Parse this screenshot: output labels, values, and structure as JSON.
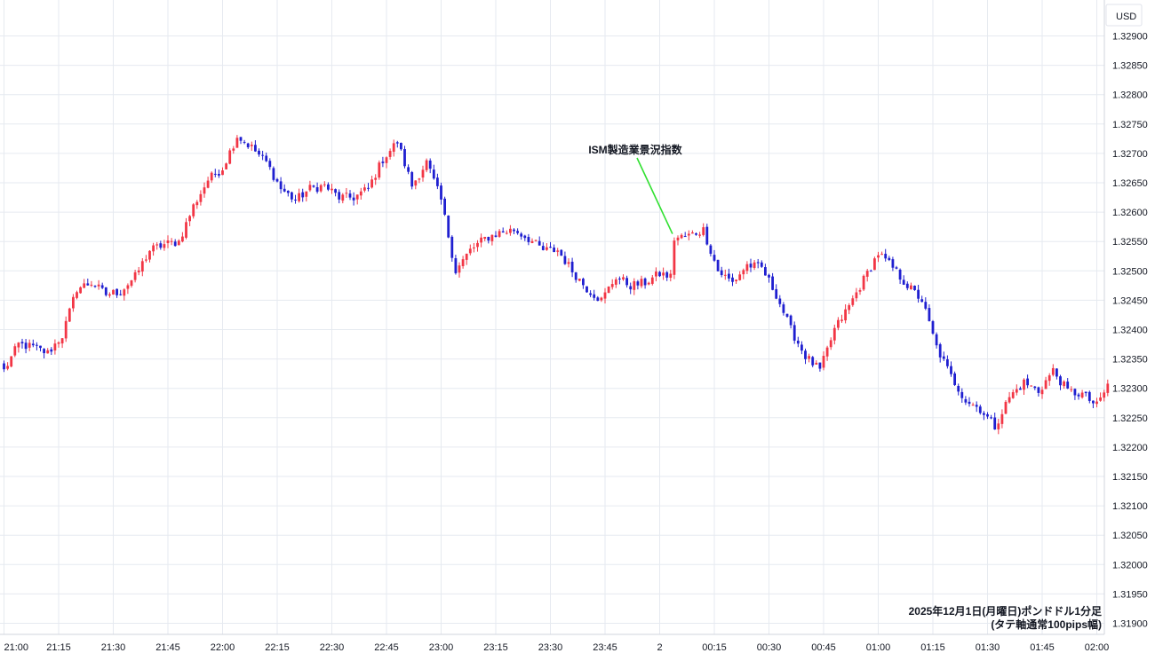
{
  "chart_data": {
    "type": "candlestick",
    "currency_label": "USD",
    "caption_line1": "2025年12月1日(月曜日)ポンドドル1分足",
    "caption_line2": "(タテ軸通常100pips幅)",
    "annotation": {
      "text": "ISM製造業景況指数",
      "time_index": 184,
      "price": 1.3256
    },
    "ylim": [
      1.31885,
      1.3294
    ],
    "y_ticks": [
      "1.32900",
      "1.32850",
      "1.32800",
      "1.32750",
      "1.32700",
      "1.32650",
      "1.32600",
      "1.32550",
      "1.32500",
      "1.32450",
      "1.32400",
      "1.32350",
      "1.32300",
      "1.32250",
      "1.32200",
      "1.32150",
      "1.32100",
      "1.32050",
      "1.32000",
      "1.31950",
      "1.31900"
    ],
    "x_ticks": [
      {
        "label": "21:00",
        "index": 0
      },
      {
        "label": "21:15",
        "index": 15
      },
      {
        "label": "21:30",
        "index": 30
      },
      {
        "label": "21:45",
        "index": 45
      },
      {
        "label": "22:00",
        "index": 60
      },
      {
        "label": "22:15",
        "index": 75
      },
      {
        "label": "22:30",
        "index": 90
      },
      {
        "label": "22:45",
        "index": 105
      },
      {
        "label": "23:00",
        "index": 120
      },
      {
        "label": "23:15",
        "index": 135
      },
      {
        "label": "23:30",
        "index": 150
      },
      {
        "label": "23:45",
        "index": 165
      },
      {
        "label": "2",
        "index": 180
      },
      {
        "label": "00:15",
        "index": 195
      },
      {
        "label": "00:30",
        "index": 210
      },
      {
        "label": "00:45",
        "index": 225
      },
      {
        "label": "01:00",
        "index": 240
      },
      {
        "label": "01:15",
        "index": 255
      },
      {
        "label": "01:30",
        "index": 270
      },
      {
        "label": "01:45",
        "index": 285
      },
      {
        "label": "02:00",
        "index": 300
      }
    ],
    "close_path": [
      [
        0,
        1.3233
      ],
      [
        4,
        1.32375
      ],
      [
        8,
        1.3237
      ],
      [
        12,
        1.3236
      ],
      [
        16,
        1.3239
      ],
      [
        20,
        1.3247
      ],
      [
        24,
        1.3248
      ],
      [
        28,
        1.3246
      ],
      [
        32,
        1.32465
      ],
      [
        36,
        1.3249
      ],
      [
        40,
        1.32535
      ],
      [
        44,
        1.32545
      ],
      [
        48,
        1.3255
      ],
      [
        52,
        1.3261
      ],
      [
        56,
        1.32655
      ],
      [
        60,
        1.32675
      ],
      [
        64,
        1.3273
      ],
      [
        68,
        1.3271
      ],
      [
        72,
        1.32685
      ],
      [
        76,
        1.3264
      ],
      [
        80,
        1.3262
      ],
      [
        84,
        1.3264
      ],
      [
        88,
        1.32645
      ],
      [
        92,
        1.32625
      ],
      [
        96,
        1.32625
      ],
      [
        100,
        1.3264
      ],
      [
        104,
        1.3269
      ],
      [
        108,
        1.3272
      ],
      [
        112,
        1.32645
      ],
      [
        116,
        1.32685
      ],
      [
        120,
        1.3262
      ],
      [
        124,
        1.325
      ],
      [
        128,
        1.32535
      ],
      [
        132,
        1.32555
      ],
      [
        136,
        1.32565
      ],
      [
        140,
        1.3257
      ],
      [
        144,
        1.32555
      ],
      [
        148,
        1.32535
      ],
      [
        152,
        1.32535
      ],
      [
        156,
        1.325
      ],
      [
        160,
        1.3247
      ],
      [
        164,
        1.3245
      ],
      [
        168,
        1.3249
      ],
      [
        172,
        1.32475
      ],
      [
        176,
        1.3248
      ],
      [
        180,
        1.32495
      ],
      [
        183,
        1.3249
      ],
      [
        184,
        1.32555
      ],
      [
        188,
        1.3256
      ],
      [
        192,
        1.3257
      ],
      [
        196,
        1.325
      ],
      [
        200,
        1.3248
      ],
      [
        204,
        1.3251
      ],
      [
        208,
        1.32505
      ],
      [
        212,
        1.3246
      ],
      [
        216,
        1.324
      ],
      [
        220,
        1.32355
      ],
      [
        224,
        1.3233
      ],
      [
        228,
        1.324
      ],
      [
        232,
        1.3244
      ],
      [
        236,
        1.32485
      ],
      [
        240,
        1.3253
      ],
      [
        244,
        1.32505
      ],
      [
        248,
        1.32475
      ],
      [
        252,
        1.3245
      ],
      [
        256,
        1.3237
      ],
      [
        260,
        1.3232
      ],
      [
        264,
        1.3228
      ],
      [
        268,
        1.32265
      ],
      [
        272,
        1.32235
      ],
      [
        276,
        1.32285
      ],
      [
        280,
        1.3231
      ],
      [
        284,
        1.32295
      ],
      [
        288,
        1.3233
      ],
      [
        292,
        1.32295
      ],
      [
        296,
        1.3229
      ],
      [
        300,
        1.3227
      ],
      [
        303,
        1.32305
      ]
    ],
    "up_color": "#f23645",
    "down_color": "#1f1fd0",
    "annotation_line_color": "#31e031",
    "grid": true
  }
}
